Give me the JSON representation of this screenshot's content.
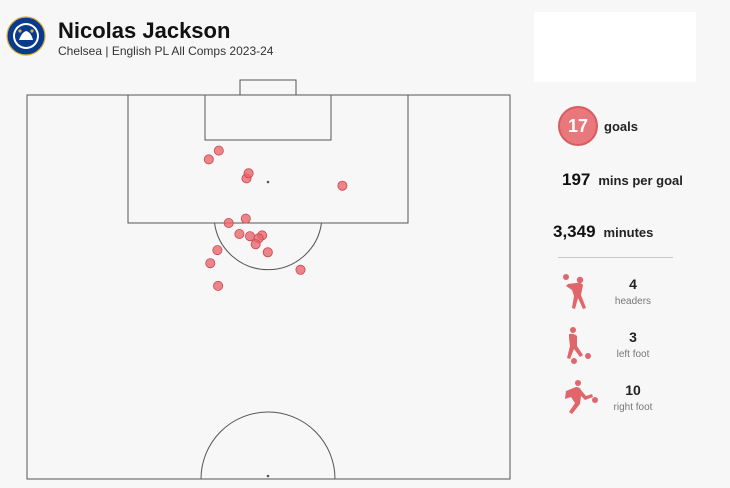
{
  "header": {
    "player_name": "Nicolas Jackson",
    "subtitle": "Chelsea | English PL All Comps 2023-24",
    "crest_text": "CHELSEA FOOTBALL CLUB"
  },
  "stats": {
    "goals": "17",
    "goals_label": "goals",
    "mins_per_goal": "197",
    "mins_per_goal_label": "mins per goal",
    "minutes": "3,349",
    "minutes_label": "minutes"
  },
  "breakdown": [
    {
      "count": "4",
      "label": "headers",
      "icon": "header-player-icon"
    },
    {
      "count": "3",
      "label": "left foot",
      "icon": "left-foot-player-icon"
    },
    {
      "count": "10",
      "label": "right foot",
      "icon": "right-foot-player-icon"
    }
  ],
  "colors": {
    "shot_fill": "#e8676e",
    "shot_stroke": "#c84850",
    "pitch_line": "#555555",
    "icon": "#e0666b"
  },
  "chart_data": {
    "type": "scatter",
    "description_units": "pitch coordinates: x = width 0-68 (left to right), y = distance from goal line in metres",
    "points": [
      {
        "x": 25.6,
        "y": 8.8
      },
      {
        "x": 27.0,
        "y": 7.6
      },
      {
        "x": 30.9,
        "y": 11.4
      },
      {
        "x": 31.2,
        "y": 10.7
      },
      {
        "x": 44.4,
        "y": 12.4
      },
      {
        "x": 30.8,
        "y": 16.9
      },
      {
        "x": 28.4,
        "y": 17.5
      },
      {
        "x": 29.9,
        "y": 19.0
      },
      {
        "x": 31.4,
        "y": 19.3
      },
      {
        "x": 33.1,
        "y": 19.2
      },
      {
        "x": 32.6,
        "y": 19.6
      },
      {
        "x": 32.2,
        "y": 20.4
      },
      {
        "x": 26.8,
        "y": 21.2
      },
      {
        "x": 33.9,
        "y": 21.5
      },
      {
        "x": 25.8,
        "y": 23.0
      },
      {
        "x": 38.5,
        "y": 23.9
      },
      {
        "x": 26.9,
        "y": 26.1
      }
    ]
  }
}
